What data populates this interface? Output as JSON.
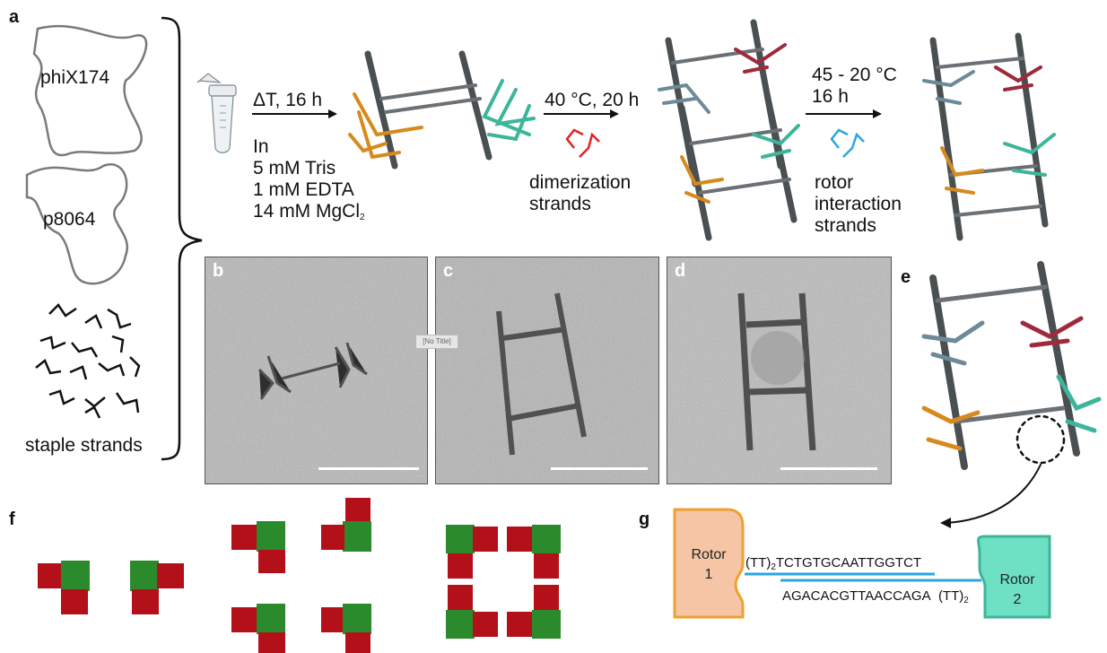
{
  "panels": {
    "a": "a",
    "b": "b",
    "c": "c",
    "d": "d",
    "e": "e",
    "f": "f",
    "g": "g"
  },
  "scaffolds": {
    "strand1": "phiX174",
    "strand2": "p8064",
    "staples": "staple strands"
  },
  "step1": {
    "arrow_label": "ΔT, 16 h",
    "lines": [
      "In",
      "5 mM Tris",
      "1 mM EDTA",
      "14 mM MgCl"
    ],
    "subscript": "2"
  },
  "step2": {
    "arrow_label": "40 °C, 20 h",
    "lines": [
      "dimerization",
      "strands"
    ]
  },
  "step3": {
    "arrow_label_lines": [
      "45 - 20 °C",
      "16 h"
    ],
    "lines": [
      "rotor",
      "interaction",
      "strands"
    ]
  },
  "tooltip": "[No Title]",
  "panel_g": {
    "rotor1": [
      "Rotor",
      "1"
    ],
    "rotor2": [
      "Rotor",
      "2"
    ],
    "top_prefix": "(TT)",
    "top_sub": "2",
    "top_seq": "TCTGTGCAATTGGTCT",
    "bottom_seq": "AGACACGTTAACCAGA",
    "bottom_suffix": "(TT)",
    "bottom_sub": "2"
  },
  "colors": {
    "orange": "#d68a1e",
    "teal": "#3db59a",
    "slate": "#6d8a98",
    "crimson": "#9e2a3a",
    "gray": "#4a4f52",
    "red_square": "#b3101a",
    "green_square": "#2b8a2b",
    "blue_strand": "#2aa6e0",
    "red_strand": "#e32222"
  }
}
